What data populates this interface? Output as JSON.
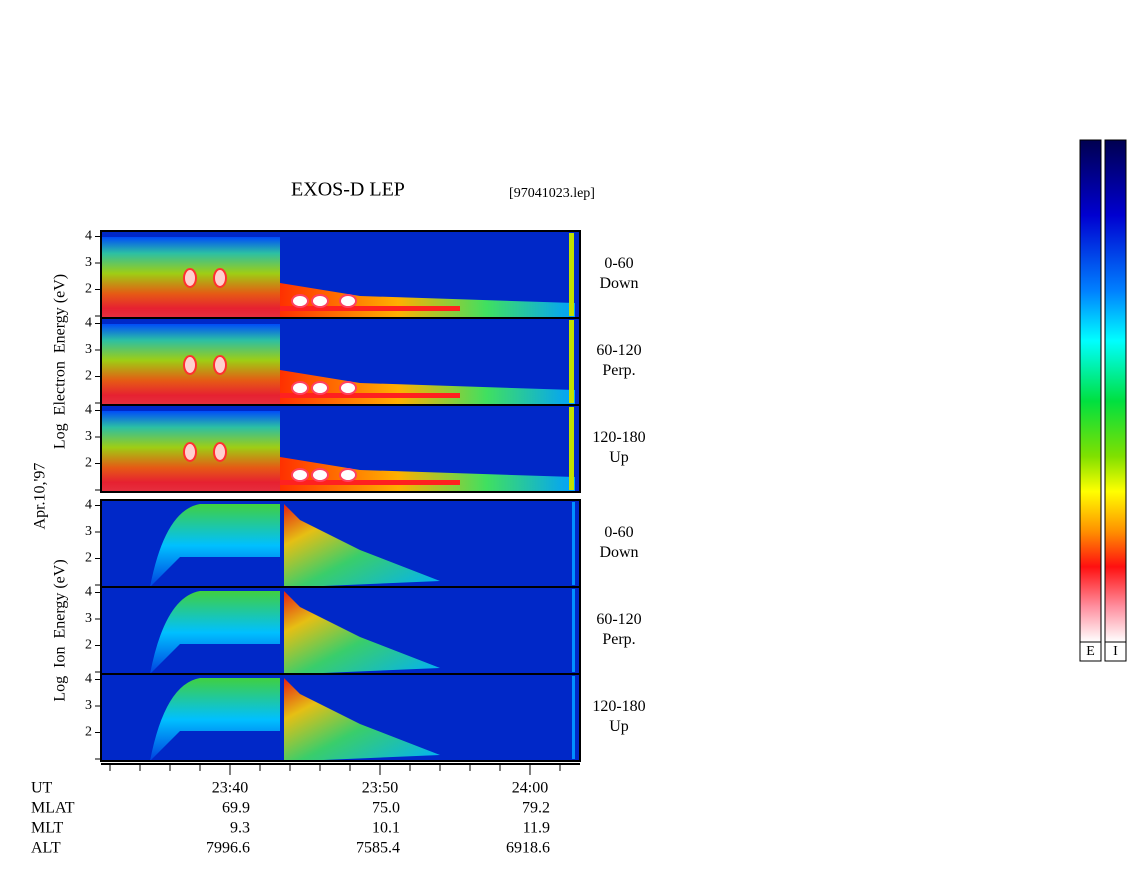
{
  "header": {
    "title": "EXOS-D LEP",
    "file": "[97041023.lep]"
  },
  "date": "Apr.10,'97",
  "electron": {
    "axis_label": "Log  Electron  Energy (eV)",
    "panels": [
      {
        "pitch": "0-60",
        "direction": "Down",
        "ticks": [
          2,
          3,
          4
        ]
      },
      {
        "pitch": "60-120",
        "direction": "Perp.",
        "ticks": [
          2,
          3,
          4
        ]
      },
      {
        "pitch": "120-180",
        "direction": "Up",
        "ticks": [
          2,
          3,
          4
        ]
      }
    ]
  },
  "ion": {
    "axis_label": "Log  Ion  Energy (eV)",
    "panels": [
      {
        "pitch": "0-60",
        "direction": "Down",
        "ticks": [
          2,
          3,
          4
        ]
      },
      {
        "pitch": "60-120",
        "direction": "Perp.",
        "ticks": [
          2,
          3,
          4
        ]
      },
      {
        "pitch": "120-180",
        "direction": "Up",
        "ticks": [
          2,
          3,
          4
        ]
      }
    ]
  },
  "orbit": {
    "rows": [
      {
        "label": "UT",
        "values": [
          "23:40",
          "23:50",
          "24:00"
        ]
      },
      {
        "label": "MLAT",
        "values": [
          "69.9",
          "75.0",
          "79.2"
        ]
      },
      {
        "label": "MLT",
        "values": [
          "9.3",
          "10.1",
          "11.9"
        ]
      },
      {
        "label": "ALT",
        "values": [
          "7996.6",
          "7585.4",
          "6918.6"
        ]
      }
    ]
  },
  "colorbars": {
    "labels": [
      "E",
      "I"
    ]
  }
}
